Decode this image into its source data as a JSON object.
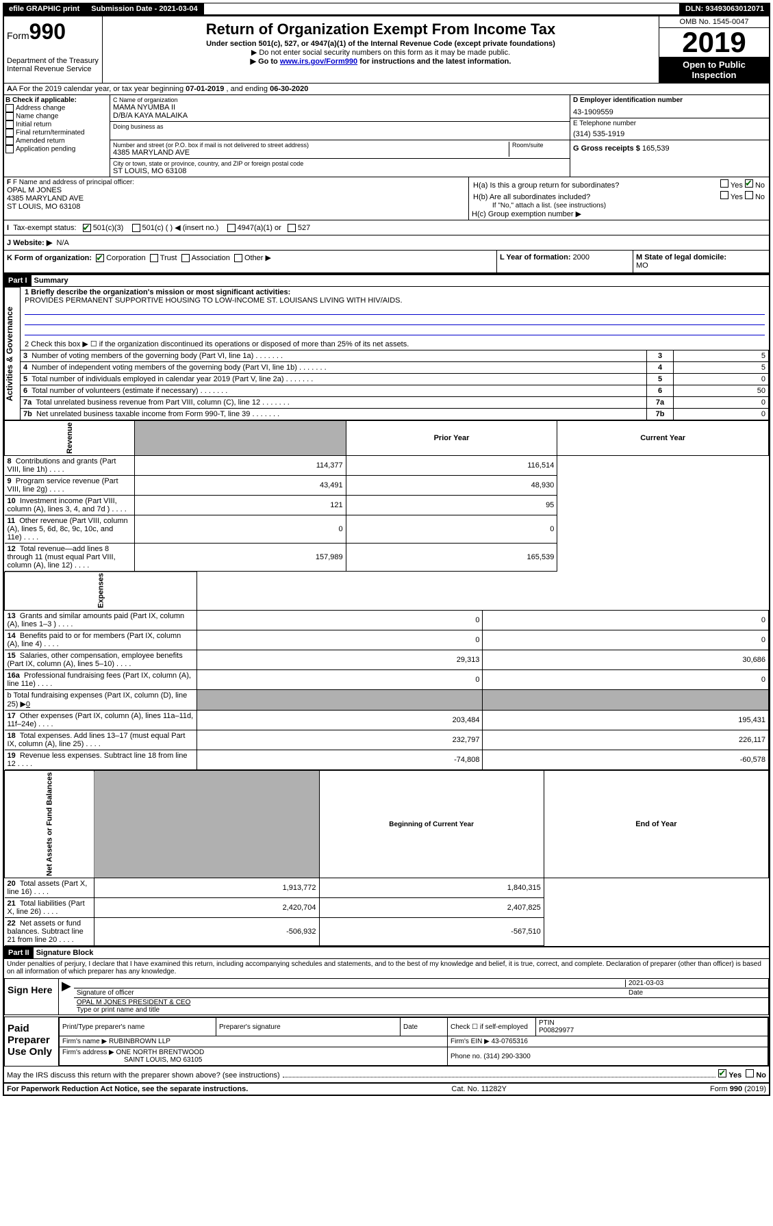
{
  "topbar": {
    "efile": "efile GRAPHIC print",
    "submission_label": "Submission Date - 2021-03-04",
    "dln": "DLN: 93493063012071"
  },
  "header": {
    "form_prefix": "Form",
    "form_number": "990",
    "title": "Return of Organization Exempt From Income Tax",
    "subtitle": "Under section 501(c), 527, or 4947(a)(1) of the Internal Revenue Code (except private foundations)",
    "note1": "▶ Do not enter social security numbers on this form as it may be made public.",
    "note2_pre": "▶ Go to ",
    "note2_link": "www.irs.gov/Form990",
    "note2_post": " for instructions and the latest information.",
    "dept": "Department of the Treasury",
    "irs": "Internal Revenue Service",
    "omb": "OMB No. 1545-0047",
    "year": "2019",
    "open1": "Open to Public",
    "open2": "Inspection"
  },
  "rowA": {
    "text_pre": "A For the 2019 calendar year, or tax year beginning ",
    "begin": "07-01-2019",
    "mid": " , and ending ",
    "end": "06-30-2020"
  },
  "boxB": {
    "title": "B Check if applicable:",
    "items": [
      "Address change",
      "Name change",
      "Initial return",
      "Final return/terminated",
      "Amended return",
      "Application pending"
    ]
  },
  "boxC": {
    "label": "C Name of organization",
    "name": "MAMA NYUMBA II",
    "dba_label": "D/B/A KAYA MALAIKA",
    "doing_label": "Doing business as",
    "addr_label": "Number and street (or P.O. box if mail is not delivered to street address)",
    "room_label": "Room/suite",
    "addr": "4385 MARYLAND AVE",
    "city_label": "City or town, state or province, country, and ZIP or foreign postal code",
    "city": "ST LOUIS, MO  63108"
  },
  "boxD": {
    "label": "D Employer identification number",
    "ein": "43-1909559"
  },
  "boxE": {
    "label": "E Telephone number",
    "phone": "(314) 535-1919"
  },
  "boxG": {
    "label": "G Gross receipts $ ",
    "amount": "165,539"
  },
  "boxF": {
    "label": "F  Name and address of principal officer:",
    "name": "OPAL M JONES",
    "addr1": "4385 MARYLAND AVE",
    "addr2": "ST LOUIS, MO  63108"
  },
  "boxH": {
    "a": "H(a)  Is this a group return for subordinates?",
    "b": "H(b)  Are all subordinates included?",
    "b_note": "If \"No,\" attach a list. (see instructions)",
    "c": "H(c)  Group exemption number ▶",
    "yes": "Yes",
    "no": "No"
  },
  "rowI": {
    "label": "Tax-exempt status:",
    "opt1": "501(c)(3)",
    "opt2": "501(c) (    ) ◀ (insert no.)",
    "opt3": "4947(a)(1) or",
    "opt4": "527"
  },
  "rowJ": {
    "label": "J   Website: ▶",
    "value": "N/A"
  },
  "rowK": {
    "label": "K Form of organization:",
    "opts": [
      "Corporation",
      "Trust",
      "Association",
      "Other ▶"
    ]
  },
  "rowL": {
    "label": "L Year of formation: ",
    "value": "2000"
  },
  "rowM": {
    "label": "M State of legal domicile:",
    "value": "MO"
  },
  "part1": {
    "header": "Part I",
    "title": "Summary",
    "line1_label": "1  Briefly describe the organization's mission or most significant activities:",
    "line1_text": "PROVIDES PERMANENT SUPPORTIVE HOUSING TO LOW-INCOME ST. LOUISANS LIVING WITH HIV/AIDS.",
    "line2": "2   Check this box ▶ ☐  if the organization discontinued its operations or disposed of more than 25% of its net assets.",
    "sideA": "Activities & Governance",
    "sideR": "Revenue",
    "sideE": "Expenses",
    "sideN": "Net Assets or Fund Balances",
    "rows_single": [
      {
        "n": "3",
        "label": "Number of voting members of the governing body (Part VI, line 1a)",
        "val": "5"
      },
      {
        "n": "4",
        "label": "Number of independent voting members of the governing body (Part VI, line 1b)",
        "val": "5"
      },
      {
        "n": "5",
        "label": "Total number of individuals employed in calendar year 2019 (Part V, line 2a)",
        "val": "0"
      },
      {
        "n": "6",
        "label": "Total number of volunteers (estimate if necessary)",
        "val": "50"
      },
      {
        "n": "7a",
        "label": "Total unrelated business revenue from Part VIII, column (C), line 12",
        "val": "0"
      },
      {
        "n": "7b",
        "label": "Net unrelated business taxable income from Form 990-T, line 39",
        "val": "0"
      }
    ],
    "col_prior": "Prior Year",
    "col_current": "Current Year",
    "rows_rev": [
      {
        "n": "8",
        "label": "Contributions and grants (Part VIII, line 1h)",
        "prior": "114,377",
        "curr": "116,514"
      },
      {
        "n": "9",
        "label": "Program service revenue (Part VIII, line 2g)",
        "prior": "43,491",
        "curr": "48,930"
      },
      {
        "n": "10",
        "label": "Investment income (Part VIII, column (A), lines 3, 4, and 7d )",
        "prior": "121",
        "curr": "95"
      },
      {
        "n": "11",
        "label": "Other revenue (Part VIII, column (A), lines 5, 6d, 8c, 9c, 10c, and 11e)",
        "prior": "0",
        "curr": "0"
      },
      {
        "n": "12",
        "label": "Total revenue—add lines 8 through 11 (must equal Part VIII, column (A), line 12)",
        "prior": "157,989",
        "curr": "165,539"
      }
    ],
    "rows_exp": [
      {
        "n": "13",
        "label": "Grants and similar amounts paid (Part IX, column (A), lines 1–3 )",
        "prior": "0",
        "curr": "0"
      },
      {
        "n": "14",
        "label": "Benefits paid to or for members (Part IX, column (A), line 4)",
        "prior": "0",
        "curr": "0"
      },
      {
        "n": "15",
        "label": "Salaries, other compensation, employee benefits (Part IX, column (A), lines 5–10)",
        "prior": "29,313",
        "curr": "30,686"
      },
      {
        "n": "16a",
        "label": "Professional fundraising fees (Part IX, column (A), line 11e)",
        "prior": "0",
        "curr": "0"
      }
    ],
    "line16b": "b  Total fundraising expenses (Part IX, column (D), line 25) ▶",
    "line16b_val": "0",
    "rows_exp2": [
      {
        "n": "17",
        "label": "Other expenses (Part IX, column (A), lines 11a–11d, 11f–24e)",
        "prior": "203,484",
        "curr": "195,431"
      },
      {
        "n": "18",
        "label": "Total expenses. Add lines 13–17 (must equal Part IX, column (A), line 25)",
        "prior": "232,797",
        "curr": "226,117"
      },
      {
        "n": "19",
        "label": "Revenue less expenses. Subtract line 18 from line 12",
        "prior": "-74,808",
        "curr": "-60,578"
      }
    ],
    "col_begin": "Beginning of Current Year",
    "col_end": "End of Year",
    "rows_net": [
      {
        "n": "20",
        "label": "Total assets (Part X, line 16)",
        "prior": "1,913,772",
        "curr": "1,840,315"
      },
      {
        "n": "21",
        "label": "Total liabilities (Part X, line 26)",
        "prior": "2,420,704",
        "curr": "2,407,825"
      },
      {
        "n": "22",
        "label": "Net assets or fund balances. Subtract line 21 from line 20",
        "prior": "-506,932",
        "curr": "-567,510"
      }
    ]
  },
  "part2": {
    "header": "Part II",
    "title": "Signature Block",
    "declaration": "Under penalties of perjury, I declare that I have examined this return, including accompanying schedules and statements, and to the best of my knowledge and belief, it is true, correct, and complete. Declaration of preparer (other than officer) is based on all information of which preparer has any knowledge."
  },
  "sign": {
    "label": "Sign Here",
    "sig_officer": "Signature of officer",
    "date_label": "Date",
    "date": "2021-03-03",
    "name": "OPAL M JONES PRESIDENT & CEO",
    "name_label": "Type or print name and title"
  },
  "paid": {
    "label": "Paid Preparer Use Only",
    "h1": "Print/Type preparer's name",
    "h2": "Preparer's signature",
    "h3": "Date",
    "h4_check": "Check ☐ if self-employed",
    "h5": "PTIN",
    "ptin": "P00829977",
    "firm_name_label": "Firm's name      ▶",
    "firm_name": "RUBINBROWN LLP",
    "firm_ein_label": "Firm's EIN ▶",
    "firm_ein": "43-0765316",
    "firm_addr_label": "Firm's address ▶",
    "firm_addr1": "ONE NORTH BRENTWOOD",
    "firm_addr2": "SAINT LOUIS, MO  63105",
    "phone_label": "Phone no. ",
    "phone": "(314) 290-3300"
  },
  "discuss": {
    "text": "May the IRS discuss this return with the preparer shown above? (see instructions)",
    "yes": "Yes",
    "no": "No"
  },
  "footer": {
    "left": "For Paperwork Reduction Act Notice, see the separate instructions.",
    "mid": "Cat. No. 11282Y",
    "right": "Form 990 (2019)"
  }
}
